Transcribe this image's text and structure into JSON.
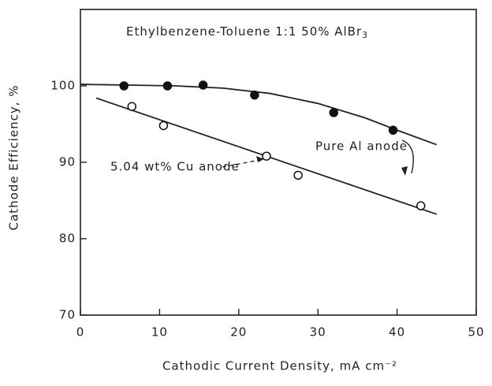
{
  "chart_data": {
    "type": "scatter",
    "title": "Ethylbenzene-Toluene 1:1 50% AlBr",
    "title_subscript": "3",
    "x_label": "Cathodic Current Density, mA cm⁻²",
    "y_label": "Cathode Efficiency, %",
    "xlim": [
      0,
      50
    ],
    "xticks": [
      0,
      10,
      20,
      30,
      40,
      50
    ],
    "ylim": [
      70,
      110
    ],
    "yticks": [
      70,
      80,
      90,
      100
    ],
    "series": [
      {
        "name": "Pure Al anode",
        "marker": "filled",
        "color": "#111111",
        "x": [
          5.5,
          11,
          15.5,
          22,
          32,
          39.5
        ],
        "values": [
          100,
          100,
          100.1,
          98.8,
          96.5,
          94.2
        ],
        "fit_x": [
          0,
          6,
          12,
          18,
          24,
          30,
          36,
          40,
          45
        ],
        "fit_values": [
          100.2,
          100.1,
          100,
          99.7,
          99,
          97.7,
          95.8,
          94.2,
          92.3
        ]
      },
      {
        "name": "5.04 wt% Cu anode",
        "marker": "open",
        "color": "#111111",
        "x": [
          6.5,
          10.5,
          23.5,
          27.5,
          43
        ],
        "values": [
          97.3,
          94.8,
          90.8,
          88.3,
          84.3
        ],
        "fit_x": [
          2,
          45
        ],
        "fit_values": [
          98.4,
          83.2
        ]
      }
    ]
  }
}
